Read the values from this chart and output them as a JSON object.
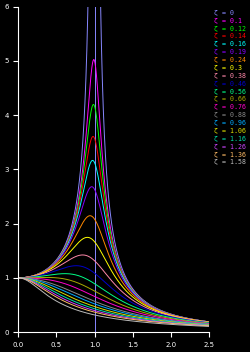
{
  "background_color": "#000000",
  "zeta_values": [
    0,
    0.1,
    0.12,
    0.14,
    0.16,
    0.19,
    0.24,
    0.3,
    0.38,
    0.46,
    0.56,
    0.66,
    0.76,
    0.88,
    0.96,
    1.06,
    1.16,
    1.26,
    1.36,
    1.58
  ],
  "zeta_colors": [
    "#8888ff",
    "#ff00ff",
    "#00ff00",
    "#ff0000",
    "#00ffff",
    "#8800ff",
    "#ff8800",
    "#ffff00",
    "#ff88aa",
    "#0000cc",
    "#00ff88",
    "#aaaa00",
    "#ff00cc",
    "#888888",
    "#00aaff",
    "#dddd00",
    "#00ddaa",
    "#cc44ff",
    "#ffbb66",
    "#bbbbbb"
  ],
  "zeta_labels": [
    "ζ = 0",
    "ζ = 0.1",
    "ζ = 0.12",
    "ζ = 0.14",
    "ζ = 0.16",
    "ζ = 0.19",
    "ζ = 0.24",
    "ζ = 0.3",
    "ζ = 0.38",
    "ζ = 0.46",
    "ζ = 0.56",
    "ζ = 0.66",
    "ζ = 0.76",
    "ζ = 0.88",
    "ζ = 0.96",
    "ζ = 1.06",
    "ζ = 1.16",
    "ζ = 1.26",
    "ζ = 1.36",
    "ζ = 1.58"
  ],
  "ylim": [
    0,
    6
  ],
  "xlim": [
    0,
    2.5
  ]
}
